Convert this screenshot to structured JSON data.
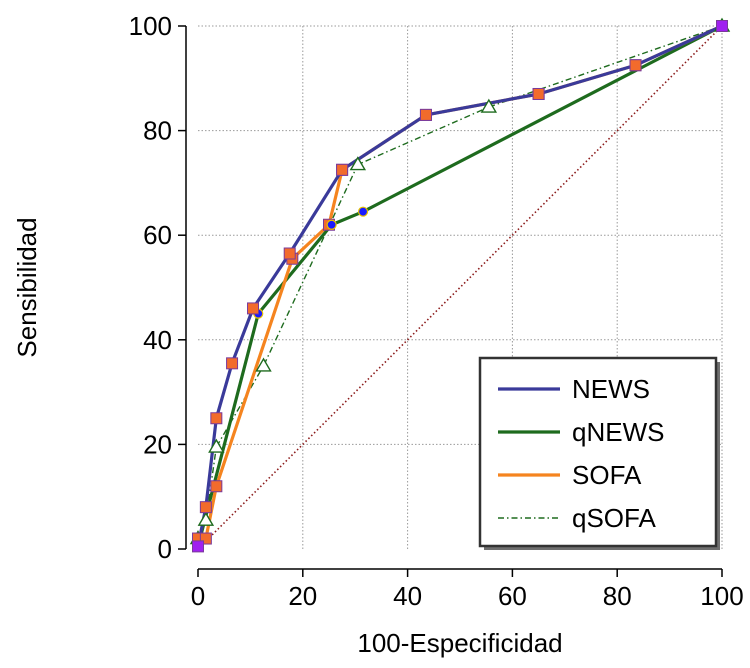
{
  "chart_data": {
    "type": "line",
    "xlabel": "100-Especificidad",
    "ylabel": "Sensibilidad",
    "xlim": [
      0,
      100
    ],
    "ylim": [
      0,
      100
    ],
    "xticks": [
      "0",
      "20",
      "40",
      "60",
      "80",
      "100"
    ],
    "yticks": [
      "0",
      "20",
      "40",
      "60",
      "80",
      "100"
    ],
    "grid": "dotted",
    "legend_position": "bottom-right",
    "reference_line": {
      "x": [
        0,
        100
      ],
      "y": [
        0,
        100
      ],
      "color": "#8b1a1a",
      "style": "dotted"
    },
    "series": [
      {
        "name": "NEWS",
        "color": "#3a3a9a",
        "line_style": "solid",
        "marker": "square",
        "marker_fill": "#f26b2c",
        "marker_first_last_fill": "#a020f0",
        "x": [
          0,
          1.5,
          3.5,
          6.5,
          10.5,
          17.5,
          27.5,
          43.5,
          65,
          83.5,
          100
        ],
        "y": [
          0.5,
          8,
          25,
          35.5,
          46,
          56.5,
          72.5,
          83,
          87,
          92.5,
          100
        ]
      },
      {
        "name": "qNEWS",
        "color": "#1e6b1e",
        "line_style": "solid",
        "marker": "circle",
        "marker_fill": "#1a1aff",
        "x": [
          0,
          11.5,
          25.5,
          31.5,
          100
        ],
        "y": [
          0.5,
          45,
          62,
          64.5,
          100
        ]
      },
      {
        "name": "SOFA",
        "color": "#f5841f",
        "line_style": "solid",
        "marker": "square",
        "marker_fill": "#f26b2c",
        "x": [
          0,
          1.5,
          3.5,
          18,
          25,
          27.5,
          43.5,
          65,
          83.5,
          100
        ],
        "y": [
          2,
          2,
          12,
          55.5,
          62,
          72.5,
          83,
          87,
          92.5,
          100
        ]
      },
      {
        "name": "qSOFA",
        "color": "#1e6b1e",
        "line_style": "dashdot",
        "marker": "triangle",
        "marker_fill": "#ffffff",
        "x": [
          0,
          1.5,
          3.5,
          12.5,
          30.5,
          55.5,
          100
        ],
        "y": [
          2,
          5.5,
          19.5,
          35,
          73.5,
          84.5,
          100
        ]
      }
    ]
  }
}
